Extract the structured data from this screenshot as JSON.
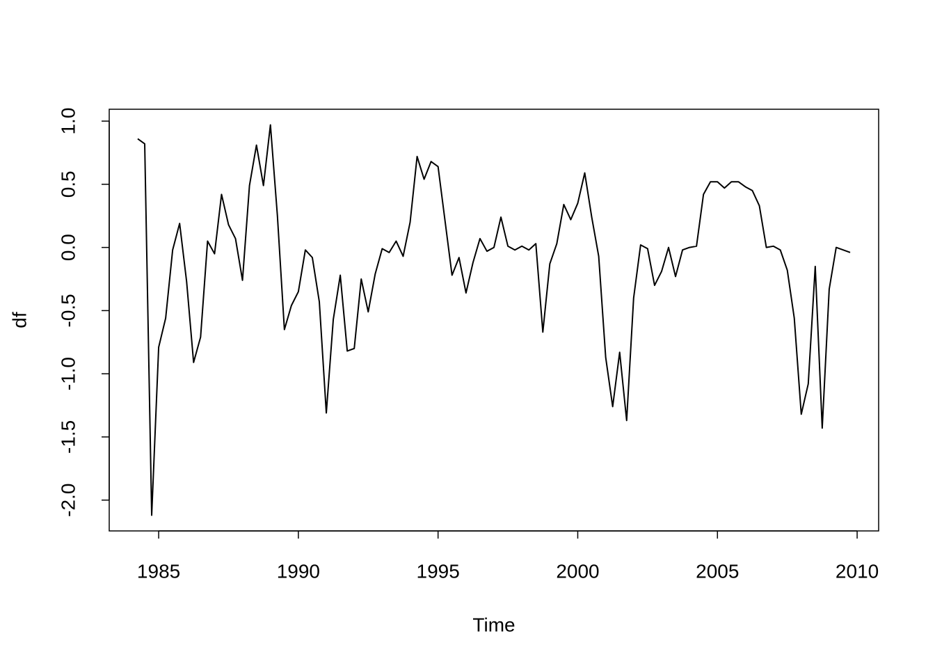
{
  "chart_data": {
    "type": "line",
    "x_label": "Time",
    "y_label": "df",
    "color": "#000000",
    "x": [
      1984.25,
      1984.5,
      1984.75,
      1985,
      1985.25,
      1985.5,
      1985.75,
      1986,
      1986.25,
      1986.5,
      1986.75,
      1987,
      1987.25,
      1987.5,
      1987.75,
      1988,
      1988.25,
      1988.5,
      1988.75,
      1989,
      1989.25,
      1989.5,
      1989.75,
      1990,
      1990.25,
      1990.5,
      1990.75,
      1991,
      1991.25,
      1991.5,
      1991.75,
      1992,
      1992.25,
      1992.5,
      1992.75,
      1993,
      1993.25,
      1993.5,
      1993.75,
      1994,
      1994.25,
      1994.5,
      1994.75,
      1995,
      1995.25,
      1995.5,
      1995.75,
      1996,
      1996.25,
      1996.5,
      1996.75,
      1997,
      1997.25,
      1997.5,
      1997.75,
      1998,
      1998.25,
      1998.5,
      1998.75,
      1999,
      1999.25,
      1999.5,
      1999.75,
      2000,
      2000.25,
      2000.5,
      2000.75,
      2001,
      2001.25,
      2001.5,
      2001.75,
      2002,
      2002.25,
      2002.5,
      2002.75,
      2003,
      2003.25,
      2003.5,
      2003.75,
      2004,
      2004.25,
      2004.5,
      2004.75,
      2005,
      2005.25,
      2005.5,
      2005.75,
      2006,
      2006.25,
      2006.5,
      2006.75,
      2007,
      2007.25,
      2007.5,
      2007.75,
      2008,
      2008.25,
      2008.5,
      2008.75,
      2009,
      2009.25,
      2009.5,
      2009.75
    ],
    "values": [
      0.86,
      0.82,
      -2.12,
      -0.79,
      -0.56,
      -0.02,
      0.19,
      -0.27,
      -0.91,
      -0.71,
      0.05,
      -0.05,
      0.42,
      0.18,
      0.07,
      -0.26,
      0.49,
      0.81,
      0.49,
      0.97,
      0.25,
      -0.65,
      -0.46,
      -0.35,
      -0.02,
      -0.08,
      -0.43,
      -1.31,
      -0.57,
      -0.22,
      -0.82,
      -0.8,
      -0.25,
      -0.51,
      -0.21,
      -0.01,
      -0.04,
      0.05,
      -0.07,
      0.2,
      0.72,
      0.54,
      0.68,
      0.64,
      0.21,
      -0.22,
      -0.08,
      -0.36,
      -0.12,
      0.07,
      -0.03,
      0,
      0.24,
      0.01,
      -0.02,
      0.01,
      -0.02,
      0.03,
      -0.67,
      -0.13,
      0.03,
      0.34,
      0.22,
      0.35,
      0.59,
      0.24,
      -0.07,
      -0.87,
      -1.26,
      -0.83,
      -1.37,
      -0.4,
      0.02,
      -0.01,
      -0.3,
      -0.19,
      0,
      -0.23,
      -0.02,
      0,
      0.01,
      0.42,
      0.52,
      0.52,
      0.47,
      0.52,
      0.52,
      0.48,
      0.45,
      0.33,
      0,
      0.01,
      -0.02,
      -0.18,
      -0.56,
      -1.32,
      -1.08,
      -0.15,
      -1.43,
      -0.33,
      0,
      -0.02,
      -0.04
    ],
    "xlim": [
      1983.23,
      2010.77
    ],
    "ylim": [
      -2.244,
      1.094
    ],
    "xticks": [
      1985,
      1990,
      1995,
      2000,
      2005,
      2010
    ],
    "yticks": [
      {
        "value": -2,
        "label": "-2.0"
      },
      -1.5,
      {
        "value": -1,
        "label": "-1.0"
      },
      -0.5,
      {
        "value": 0,
        "label": "0.0"
      },
      0.5,
      {
        "value": 1,
        "label": "1.0"
      }
    ]
  }
}
